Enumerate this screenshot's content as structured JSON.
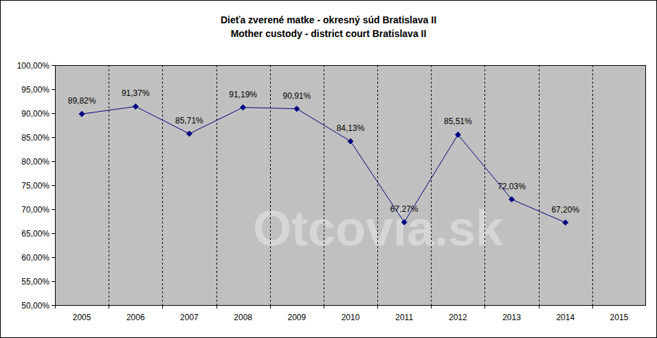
{
  "chart_data": {
    "type": "line",
    "title": "Dieťa zverené matke - okresný súd Bratislava II",
    "subtitle": "Mother custody - district court Bratislava II",
    "annotation": "Otcovia.sk",
    "categories": [
      "2005",
      "2006",
      "2007",
      "2008",
      "2009",
      "2010",
      "2011",
      "2012",
      "2013",
      "2014",
      "2015"
    ],
    "values": [
      89.82,
      91.37,
      85.71,
      91.19,
      90.91,
      84.13,
      67.27,
      85.51,
      72.03,
      67.2,
      null
    ],
    "value_labels": [
      "89,82%",
      "91,37%",
      "85,71%",
      "91,19%",
      "90,91%",
      "84,13%",
      "67,27%",
      "85,51%",
      "72,03%",
      "67,20%",
      null
    ],
    "color": "#000080",
    "marker": "diamond",
    "data_labels": true,
    "grid": true,
    "ylim": [
      50,
      100
    ],
    "yticks": [
      {
        "value": 50,
        "label": "50,00%"
      },
      {
        "value": 55,
        "label": "55,00%"
      },
      {
        "value": 60,
        "label": "60,00%"
      },
      {
        "value": 65,
        "label": "65,00%"
      },
      {
        "value": 70,
        "label": "70,00%"
      },
      {
        "value": 75,
        "label": "75,00%"
      },
      {
        "value": 80,
        "label": "80,00%"
      },
      {
        "value": 85,
        "label": "85,00%"
      },
      {
        "value": 90,
        "label": "90,00%"
      },
      {
        "value": 95,
        "label": "95,00%"
      },
      {
        "value": 100,
        "label": "100,00%"
      }
    ]
  }
}
